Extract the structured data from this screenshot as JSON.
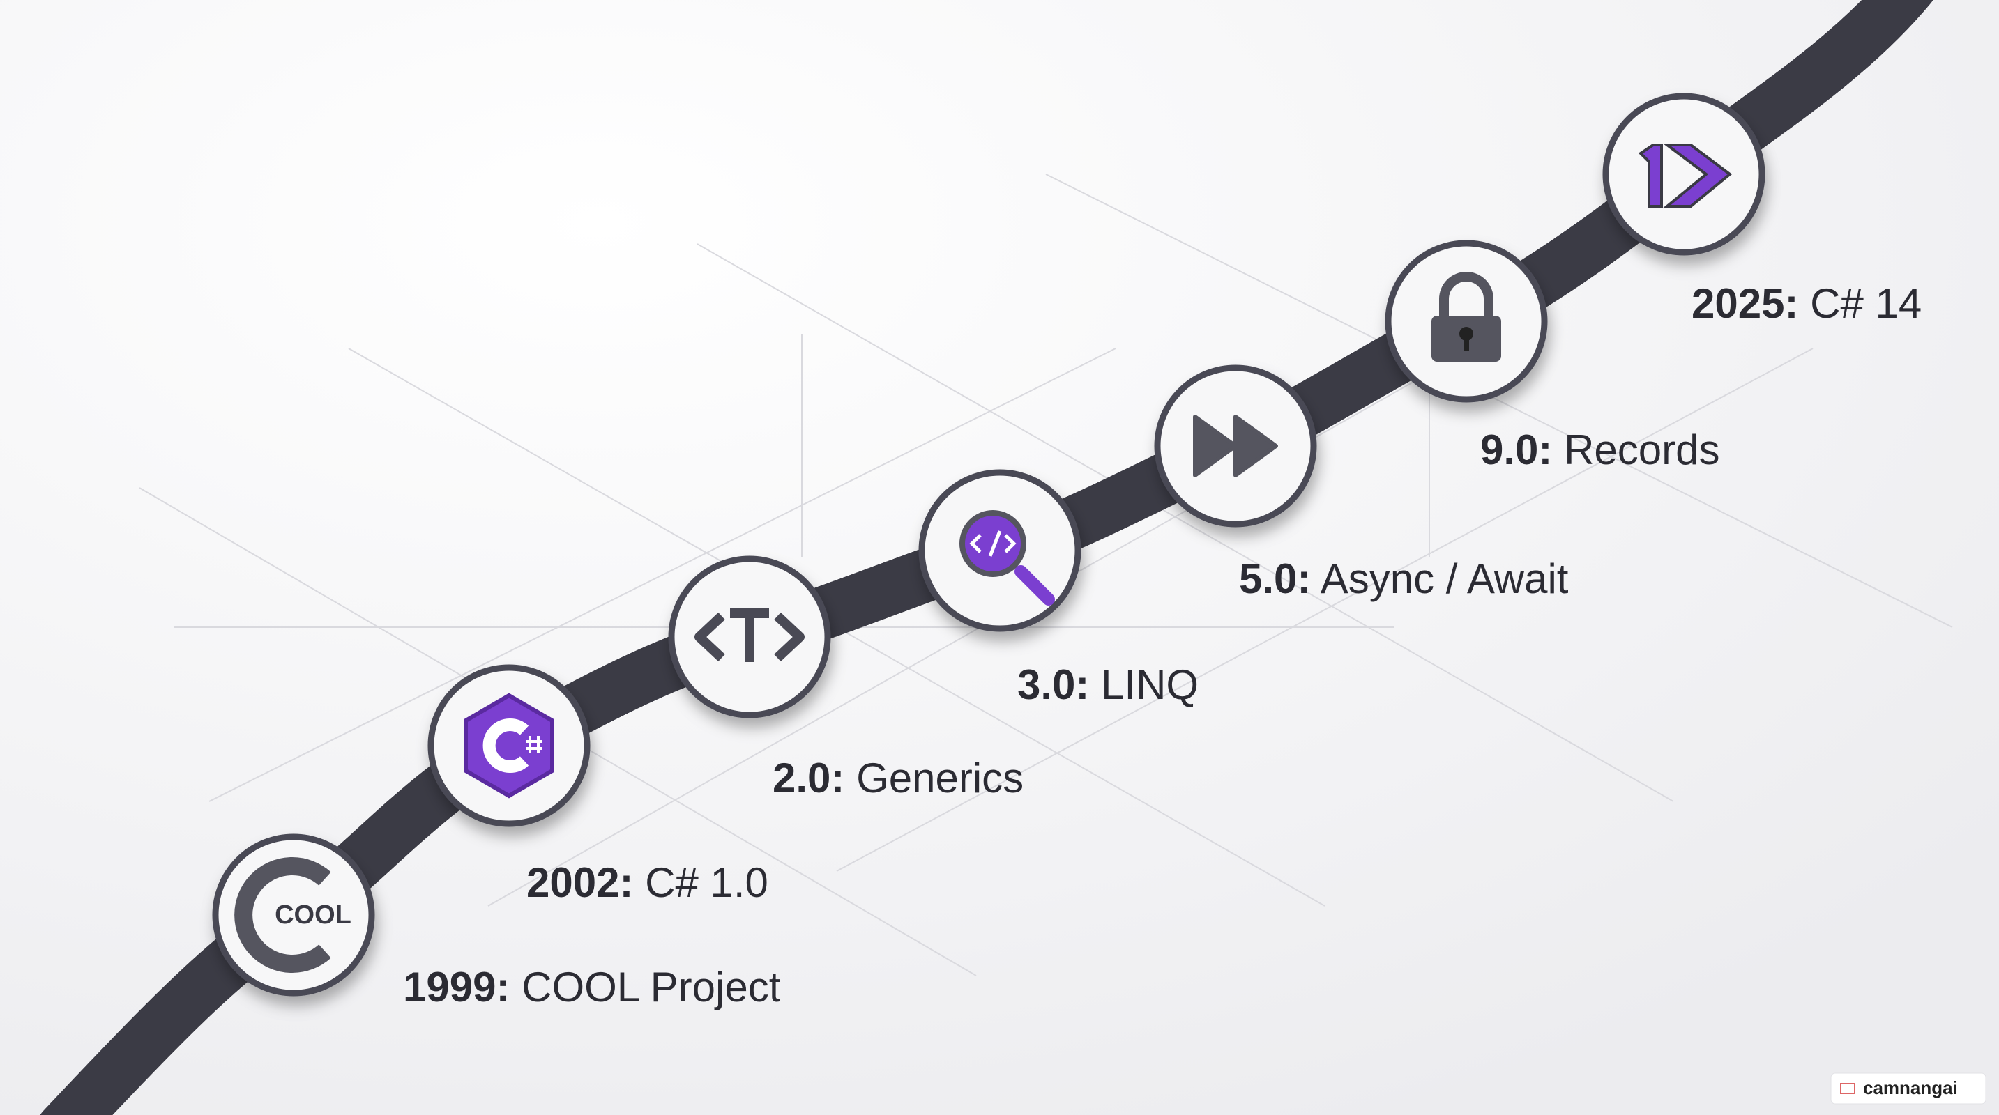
{
  "milestones": [
    {
      "year": "1999:",
      "title": "COOL Project",
      "icon_text": "COOL"
    },
    {
      "year": "2002:",
      "title": "C# 1.0"
    },
    {
      "year": "2.0:",
      "title": "Generics"
    },
    {
      "year": "3.0:",
      "title": "LINQ"
    },
    {
      "year": "5.0:",
      "title": "Async / Await"
    },
    {
      "year": "9.0:",
      "title": "Records"
    },
    {
      "year": "2025:",
      "title": "C# 14"
    }
  ],
  "watermark": "camnangai"
}
